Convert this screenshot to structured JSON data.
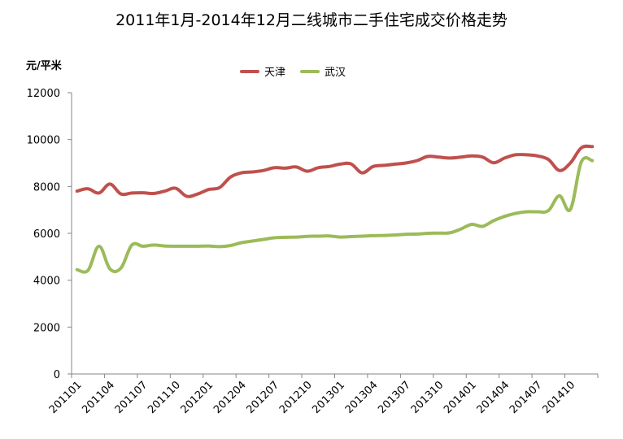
{
  "chart_data": {
    "type": "line",
    "title": "2011年1月-2014年12月二线城市二手住宅成交价格走势",
    "ylabel": "元/平米",
    "xlabel": "",
    "ylim": [
      0,
      12000
    ],
    "yticks": [
      0,
      2000,
      4000,
      6000,
      8000,
      10000,
      12000
    ],
    "x": [
      "201101",
      "201102",
      "201103",
      "201104",
      "201105",
      "201106",
      "201107",
      "201108",
      "201109",
      "201110",
      "201111",
      "201112",
      "201201",
      "201202",
      "201203",
      "201204",
      "201205",
      "201206",
      "201207",
      "201208",
      "201209",
      "201210",
      "201211",
      "201212",
      "201301",
      "201302",
      "201303",
      "201304",
      "201305",
      "201306",
      "201307",
      "201308",
      "201309",
      "201310",
      "201311",
      "201312",
      "201401",
      "201402",
      "201403",
      "201404",
      "201405",
      "201406",
      "201407",
      "201408",
      "201409",
      "201410",
      "201411",
      "201412"
    ],
    "xtick_labels": [
      "201101",
      "201104",
      "201107",
      "201110",
      "201201",
      "201204",
      "201207",
      "201210",
      "201301",
      "201304",
      "201307",
      "201310",
      "201401",
      "201404",
      "201407",
      "201410"
    ],
    "series": [
      {
        "name": "天津",
        "color": "#c0504d",
        "values": [
          7800,
          7900,
          7720,
          8100,
          7680,
          7720,
          7730,
          7700,
          7800,
          7920,
          7580,
          7680,
          7870,
          7950,
          8400,
          8580,
          8620,
          8680,
          8800,
          8780,
          8830,
          8650,
          8800,
          8850,
          8950,
          8960,
          8580,
          8850,
          8900,
          8950,
          9000,
          9100,
          9280,
          9250,
          9210,
          9250,
          9300,
          9250,
          9010,
          9210,
          9350,
          9350,
          9300,
          9150,
          8680,
          9000,
          9650,
          9700
        ]
      },
      {
        "name": "武汉",
        "color": "#9bbb59",
        "values": [
          4450,
          4420,
          5450,
          4480,
          4520,
          5500,
          5450,
          5500,
          5460,
          5450,
          5450,
          5450,
          5460,
          5430,
          5480,
          5600,
          5670,
          5740,
          5810,
          5830,
          5840,
          5870,
          5880,
          5890,
          5840,
          5860,
          5880,
          5900,
          5910,
          5930,
          5960,
          5970,
          6000,
          6010,
          6020,
          6180,
          6380,
          6300,
          6540,
          6720,
          6850,
          6920,
          6920,
          6970,
          7600,
          7020,
          9050,
          9100
        ]
      }
    ],
    "grid": false,
    "legend_position": "top-center"
  }
}
